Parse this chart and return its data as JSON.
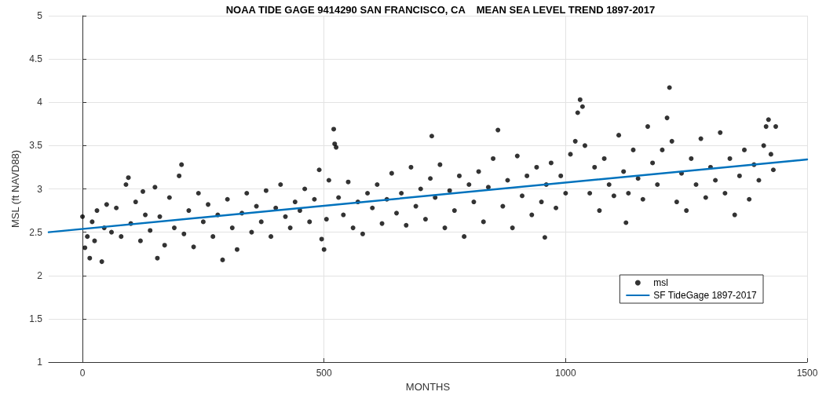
{
  "chart_data": {
    "type": "scatter",
    "title": "NOAA TIDE GAGE 9414290 SAN FRANCISCO, CA    MEAN SEA LEVEL TREND 1897-2017",
    "xlabel": "MONTHS",
    "ylabel": "MSL (ft NAVD88)",
    "xlim": [
      -70,
      1500
    ],
    "xticks": [
      0,
      500,
      1000,
      1500
    ],
    "ylim": [
      1,
      5
    ],
    "yticks": [
      1,
      1.5,
      2,
      2.5,
      3,
      3.5,
      4,
      4.5,
      5
    ],
    "grid": true,
    "legend": "bottom right",
    "marker": "circle",
    "series": [
      {
        "name": "msl",
        "color": "#000000",
        "x": [
          0,
          5,
          10,
          15,
          20,
          25,
          30,
          40,
          45,
          50,
          60,
          70,
          80,
          90,
          95,
          100,
          110,
          120,
          125,
          130,
          140,
          150,
          155,
          160,
          170,
          180,
          190,
          200,
          205,
          210,
          220,
          230,
          240,
          250,
          260,
          270,
          280,
          290,
          300,
          310,
          320,
          330,
          340,
          350,
          360,
          370,
          380,
          390,
          400,
          410,
          420,
          430,
          440,
          450,
          460,
          470,
          480,
          490,
          495,
          500,
          505,
          510,
          520,
          522,
          525,
          530,
          540,
          550,
          560,
          570,
          580,
          590,
          600,
          610,
          620,
          630,
          640,
          650,
          660,
          670,
          680,
          690,
          700,
          710,
          720,
          723,
          730,
          740,
          750,
          760,
          770,
          780,
          790,
          800,
          810,
          820,
          830,
          840,
          850,
          860,
          870,
          880,
          890,
          900,
          910,
          920,
          930,
          940,
          950,
          957,
          960,
          970,
          980,
          990,
          1000,
          1010,
          1020,
          1025,
          1030,
          1035,
          1040,
          1050,
          1060,
          1070,
          1080,
          1090,
          1100,
          1110,
          1120,
          1125,
          1130,
          1140,
          1150,
          1160,
          1170,
          1180,
          1190,
          1200,
          1210,
          1215,
          1220,
          1230,
          1240,
          1250,
          1260,
          1270,
          1280,
          1290,
          1300,
          1310,
          1320,
          1330,
          1340,
          1350,
          1360,
          1370,
          1380,
          1390,
          1400,
          1410,
          1415,
          1420,
          1425,
          1430,
          1435
        ],
        "values": [
          2.68,
          2.32,
          2.45,
          2.2,
          2.62,
          2.4,
          2.75,
          2.16,
          2.55,
          2.82,
          2.5,
          2.78,
          2.45,
          3.05,
          3.13,
          2.6,
          2.85,
          2.4,
          2.97,
          2.7,
          2.52,
          3.02,
          2.2,
          2.68,
          2.35,
          2.9,
          2.55,
          3.15,
          3.28,
          2.48,
          2.75,
          2.33,
          2.95,
          2.62,
          2.82,
          2.45,
          2.7,
          2.18,
          2.88,
          2.55,
          2.3,
          2.72,
          2.95,
          2.5,
          2.8,
          2.62,
          2.98,
          2.45,
          2.78,
          3.05,
          2.68,
          2.55,
          2.85,
          2.75,
          3.0,
          2.62,
          2.88,
          3.22,
          2.42,
          2.3,
          2.65,
          3.1,
          3.69,
          3.52,
          3.48,
          2.9,
          2.7,
          3.08,
          2.55,
          2.85,
          2.48,
          2.95,
          2.78,
          3.05,
          2.6,
          2.88,
          3.18,
          2.72,
          2.95,
          2.58,
          3.25,
          2.8,
          3.0,
          2.65,
          3.12,
          3.61,
          2.9,
          3.28,
          2.55,
          2.98,
          2.75,
          3.15,
          2.45,
          3.05,
          2.85,
          3.2,
          2.62,
          3.02,
          3.35,
          3.68,
          2.8,
          3.1,
          2.55,
          3.38,
          2.92,
          3.15,
          2.7,
          3.25,
          2.85,
          2.44,
          3.05,
          3.3,
          2.78,
          3.15,
          2.95,
          3.4,
          3.55,
          3.88,
          4.03,
          3.95,
          3.5,
          2.95,
          3.25,
          2.75,
          3.35,
          3.05,
          2.92,
          3.62,
          3.2,
          2.61,
          2.95,
          3.45,
          3.12,
          2.88,
          3.72,
          3.3,
          3.05,
          3.45,
          3.82,
          4.17,
          3.55,
          2.85,
          3.18,
          2.75,
          3.35,
          3.05,
          3.58,
          2.9,
          3.25,
          3.1,
          3.65,
          2.95,
          3.35,
          2.7,
          3.15,
          3.45,
          2.88,
          3.28,
          3.1,
          3.5,
          3.72,
          3.8,
          3.4,
          3.22,
          3.72
        ]
      },
      {
        "name": "SF TideGage 1897-2017",
        "type": "line",
        "marker": "none",
        "color": "#0072bd",
        "x": [
          -70,
          1500
        ],
        "values": [
          2.5,
          3.34
        ]
      }
    ]
  }
}
